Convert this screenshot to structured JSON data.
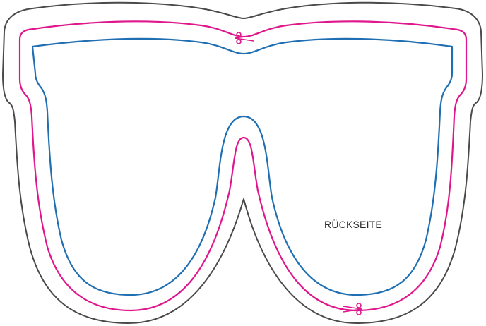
{
  "diagram": {
    "label": "RÜCKSEITE",
    "colors": {
      "outer_line": "#4a4a4a",
      "cut_line": "#e0178c",
      "inner_line": "#1f6fb2",
      "label_text": "#2b2b2b",
      "background": "#ffffff"
    },
    "icons": {
      "cut_marker_top": "scissors-icon",
      "cut_marker_bottom": "scissors-icon"
    }
  }
}
